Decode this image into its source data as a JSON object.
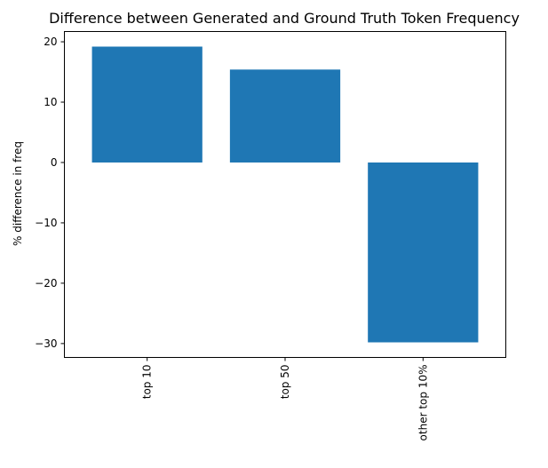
{
  "chart_data": {
    "type": "bar",
    "title": "Difference between Generated and Ground Truth Token Frequency",
    "xlabel": "",
    "ylabel": "% difference in freq",
    "categories": [
      "top 10",
      "top 50",
      "other top 10%"
    ],
    "values": [
      19.2,
      15.4,
      -29.8
    ],
    "ylim": [
      -32.3,
      21.7
    ],
    "yticks": [
      20,
      10,
      0,
      -10,
      -20,
      -30
    ],
    "ytick_labels": [
      "20",
      "10",
      "0",
      "−10",
      "−20",
      "−30"
    ],
    "xtick_rotation": "vertical",
    "grid": false,
    "legend": "none",
    "bar_color": "#1f77b4"
  }
}
